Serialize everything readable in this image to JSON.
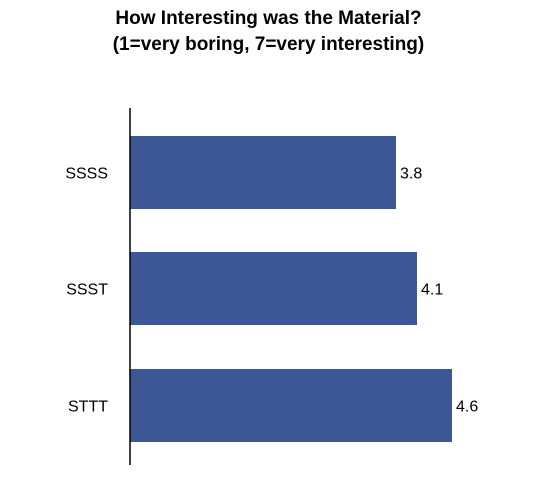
{
  "chart_data": {
    "type": "bar",
    "orientation": "horizontal",
    "title": "How Interesting was the Material?",
    "subtitle": "(1=very boring, 7=very interesting)",
    "categories": [
      "SSSS",
      "SSST",
      "STTT"
    ],
    "values": [
      3.8,
      4.1,
      4.6
    ],
    "data_labels": [
      "3.8",
      "4.1",
      "4.6"
    ],
    "xlim": [
      0,
      7
    ],
    "grid": false,
    "bar_color": "#3d5794"
  }
}
